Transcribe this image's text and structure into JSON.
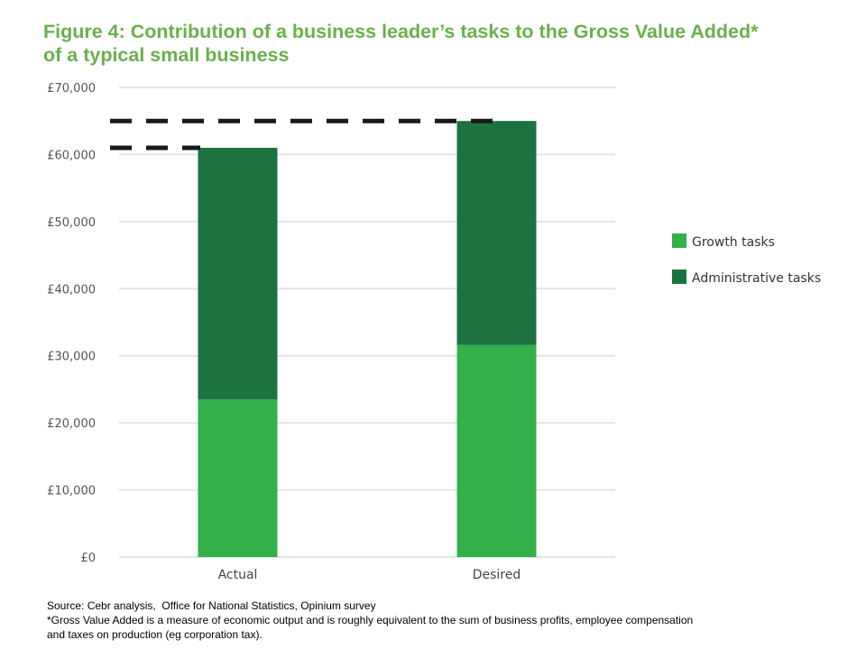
{
  "title_line1": "Figure 4: Contribution of a business leader’s tasks to the Gross Value Added*",
  "title_line2": "of a typical small business",
  "footer": {
    "source": "Source: Cebr analysis,  Office for National Statistics, Opinium survey",
    "note_line1": "*Gross Value Added is a measure of economic output and is roughly equivalent to the sum of business profits, employee compensation",
    "note_line2": "and taxes on production (eg corporation tax)."
  },
  "chart_data": {
    "type": "bar",
    "stacked": true,
    "categories": [
      "Actual",
      "Desired"
    ],
    "series": [
      {
        "name": "Growth tasks",
        "values": [
          23500,
          31600
        ],
        "color": "#33b049"
      },
      {
        "name": "Administrative tasks",
        "values": [
          37500,
          33400
        ],
        "color": "#1c7340"
      }
    ],
    "ylim": [
      0,
      70000
    ],
    "yticks": [
      0,
      10000,
      20000,
      30000,
      40000,
      50000,
      60000,
      70000
    ],
    "ytick_labels": [
      "£0",
      "£10,000",
      "£20,000",
      "£30,000",
      "£40,000",
      "£50,000",
      "£60,000",
      "£70,000"
    ],
    "reference_lines": [
      61000,
      65000
    ],
    "reference_line_color": "#1a1a1a",
    "grid": true,
    "legend_position": "right"
  }
}
